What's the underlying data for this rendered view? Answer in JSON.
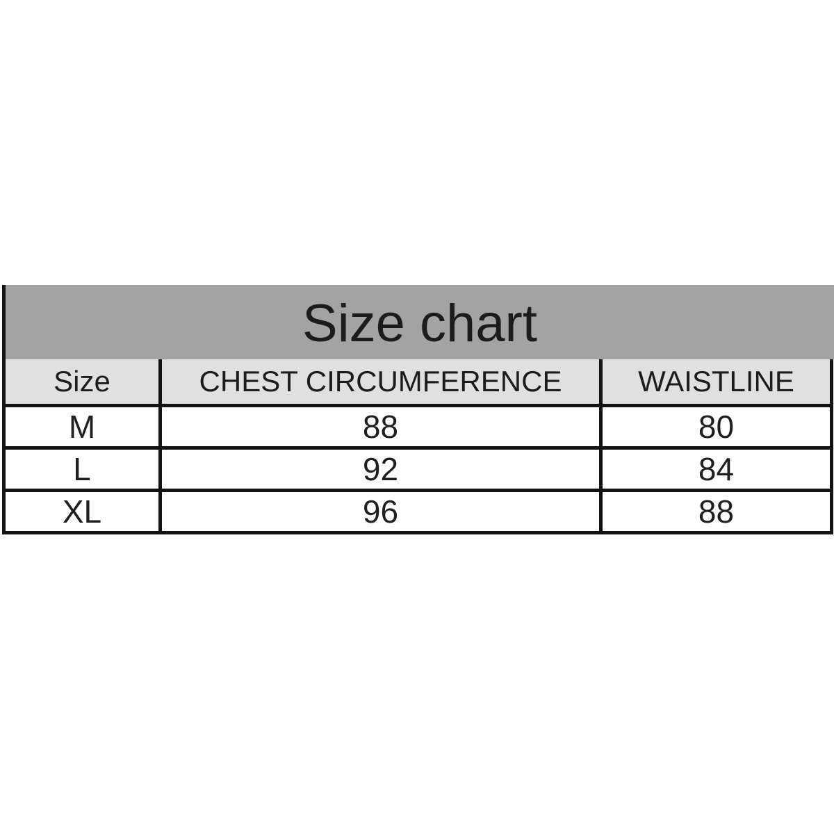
{
  "title": "Size chart",
  "colors": {
    "page_bg": "#ffffff",
    "title_band_bg": "#a3a3a3",
    "header_row_bg": "#e0e0e0",
    "row_bg": "#ffffff",
    "border": "#131313",
    "text": "#1f1f1f"
  },
  "chart_data": {
    "type": "table",
    "title": "Size chart",
    "columns": [
      "Size",
      "CHEST CIRCUMFERENCE",
      "WAISTLINE"
    ],
    "rows": [
      [
        "M",
        "88",
        "80"
      ],
      [
        "L",
        "92",
        "84"
      ],
      [
        "XL",
        "96",
        "88"
      ]
    ]
  },
  "table": {
    "headers": {
      "size": "Size",
      "chest": "CHEST CIRCUMFERENCE",
      "waist": "WAISTLINE"
    },
    "rows": [
      {
        "size": "M",
        "chest": "88",
        "waist": "80"
      },
      {
        "size": "L",
        "chest": "92",
        "waist": "84"
      },
      {
        "size": "XL",
        "chest": "96",
        "waist": "88"
      }
    ]
  }
}
